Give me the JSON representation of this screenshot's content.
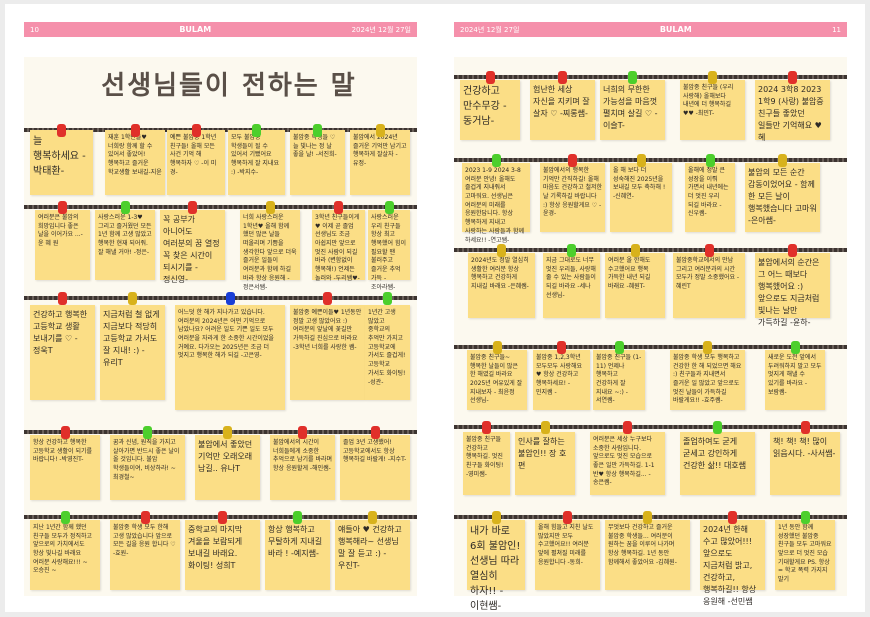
{
  "left_page": {
    "page_number": "10",
    "magazine": "BULAM",
    "date": "2024년 12월 27일",
    "title": "선생님들이 전하는 말"
  },
  "right_page": {
    "page_number": "11",
    "magazine": "BULAM",
    "date": "2024년 12월 27일"
  },
  "colors": {
    "header": "#f590ab",
    "note": "#fbde86",
    "pin_red": "#e0302a",
    "pin_green": "#4ccf2c",
    "pin_yellow": "#d8b21c",
    "pin_blue": "#1a3fd6"
  },
  "left_notes": [
    {
      "pin": "red",
      "text": "늘 행복하세요 -박태환-"
    },
    {
      "pin": "red",
      "text": "재훈 1학년들♥ 너희랑 함께 할 수 있어서 좋았어! 행복하고 즐거운 학교생활 보내길-지윤"
    },
    {
      "pin": "red",
      "text": "예쁜 불암중 1학년 친구들! 올해 모든 사건 기억 해 행복하자 ♡ -이 미 경-"
    },
    {
      "pin": "green",
      "text": "모두 불암중 학생들이 될 수 있어서 기뻤어요 행복하게 잘 지내요 :) -박지수-"
    },
    {
      "pin": "green",
      "text": "불암중 학생들 ♡ 늘 빛나는 정 날 좋을 날! -서진희-"
    },
    {
      "pin": "yellow",
      "text": "불암에서 2024년 즐거운 기억만 남기고 행복하게 잘살자 -유정-"
    },
    {
      "pin": "red",
      "text": "여러분은 불암의 희망입니다 좋은 날을 이어가요 ...-윤 혜 원"
    },
    {
      "pin": "green",
      "text": "사랑스러운 1-3♥ 그리고 즐거웠던 모든 1년 함께 고생 많았고 행복한 현재 되어줘. 잘 해낼 거야! -정은-"
    },
    {
      "pin": "red",
      "text": "꼭 공부가 아니어도 여러분의 꿈 열정 꼭 찾은 시간이 되시기를 -정신영-"
    },
    {
      "pin": "yellow",
      "text": "너희 사랑스러운 1학년♥ 올해 함께 했던 많은 날들 떠올리며 기쁨을 생각한다 앞으로 더욱 즐거운 일들이 여러분과 함께 하길 바라 항상 응원해 -정은서쌤-"
    },
    {
      "pin": "red",
      "text": "3학년 친구들이게♥ 이제 곧 졸업 선생님도 조금 아쉽지만 앞으로 멋진 사람이 되길 바라 (변함없이 행복해!) 언제든 놀러와 -두리쌤♥-"
    },
    {
      "pin": "green",
      "text": "사랑스러운 우리 친구들 항상 최고 행복했어 힘이 필요할 땐 불러주고 즐거운 추억 가득 -조아라쌤-"
    },
    {
      "pin": "red",
      "text": "건강하고 행복한 고등학교 생활 보내기를 ♡ -정욱T"
    },
    {
      "pin": "yellow",
      "text": "지금처럼 철 없게 지금보다 적당히 고등학교 가서도 잘 지내! :) -유리T"
    },
    {
      "pin": "blue",
      "text": "어느덧 한 해가 지나가고 있습니다. 여러분의 2024년은 어떤 기억으로 남았나요? 어려운 일도 기쁜 일도 모두 여러분을 자라게 한 소중한 시간이었을 거예요. 다가오는 2025년은 조금 더 멋지고 행복한 해가 되길 -고은영-"
    },
    {
      "pin": "red",
      "text": "불암중 예쁜이들♥ 1년동안 정말 고생 많았어요 :) 여러분의 앞날에 꽃길만 가득하길 진심으로 바라요 -3학년 너희를 사랑한 쌤-"
    },
    {
      "pin": "green",
      "text": "1년간 고생 많았고 중학교의 추억만 가지고 고등학교에 가서도 즐겁게! 고등학교 가서도 화이팅! -성관-"
    },
    {
      "pin": "red",
      "text": "항상 건강하고 행복한 고등학교 생활이 되기를 바랍니다! -박영진T-"
    },
    {
      "pin": "green",
      "text": "꿈과 신념, 원칙을 가지고 살아가면 반드시 좋은 날이 올 것입니다. 불암 학생들이여, 비상하라! ~최경철~"
    },
    {
      "pin": "yellow",
      "text": "불암에서 좋았던 기억만 오래오래 남길.. 유나T"
    },
    {
      "pin": "red",
      "text": "불암에서의 시간이 너희들에게 소중한 추억으로 남기를 바라며 항상 응원할게 -해인쌤-"
    },
    {
      "pin": "red",
      "text": "졸업 3년 고생했어! 고등학교에서도 항상 행복하길 바랄게! -지수T-"
    },
    {
      "pin": "green",
      "text": "지난 1년간 함께 했던 친구들 모두가 정직하고 앞으로의 가치에서도 항상 빛나길 바래요 여러분 사랑해요!!! ~오승진 ~"
    },
    {
      "pin": "red",
      "text": "불암중 학생 모두 한해 고생 많았습니다 앞으로 모든 길을 응원 합니다 ♡ -효원-"
    },
    {
      "pin": "red",
      "text": "중학교의 마지막 겨울을 보람되게 보내길 바래요. 화이팅! 성희T"
    },
    {
      "pin": "green",
      "text": "항상 행복하고 무탈하게 지내길 바라 ! -예지쌤-"
    },
    {
      "pin": "yellow",
      "text": "얘들아 ♥ 건강하고 행복해라~ 선생님 말 잘 듣고 :) -우진T-"
    }
  ],
  "right_notes": [
    {
      "pin": "red",
      "text": "건강하고 만수무강 -동거남-"
    },
    {
      "pin": "red",
      "text": "험난한 세상 자신을 지키며 잘 살자 ♡ -찌롱쌤-"
    },
    {
      "pin": "green",
      "text": "너희의 무한한 가능성을 마음껏 펼치며 살길 ♡ -이슬T-"
    },
    {
      "pin": "yellow",
      "text": "불암중 친구들 (우리 사랑해) 올해보다 내년에 더 행복하길 ♥♥ -최민T-"
    },
    {
      "pin": "red",
      "text": "2024 3학8 2023 1학9 (사랑) 불암중 친구들 좋았던 일들만 기억해요 ♥ 혜"
    },
    {
      "pin": "green",
      "text": "2023 1-9 2024 3-8 여러분 안녕! 올해도 즐겁게 지내줘서 고마워요. 선생님은 여러분의 미래를 응원한답니다. 항상 행복하게 지내고 사랑하는 사람들과 함께 하세요!! -연고쌤-"
    },
    {
      "pin": "red",
      "text": "불암에서의 행복한 기억만 간직하길! 올해 마음도 건강하고 철저한 날 기록하길 바랍니다 :) 항상 응원할게요 ♡ -윤경-"
    },
    {
      "pin": "yellow",
      "text": "올 해 보다 더 성숙해진 2025년을 보내길 모두 축하해 ! -신혜연-"
    },
    {
      "pin": "green",
      "text": "올해에 정말 큰 성장을 이뤄 가면서 내년에는 더 멋진 우리 되길 바라요 -신우쌤-"
    },
    {
      "pin": "yellow",
      "text": "불암의 모든 순간 감동이었어요 - 함께 한 모든 날이 행복했습니다 고마워 -은아쌤-"
    },
    {
      "pin": "yellow",
      "text": "2024년도 정말 열심히 생활한 여러분 항상 행복하고 건강하게 지내길 바래요 -은혜쌤-"
    },
    {
      "pin": "green",
      "text": "지금 그대로도 너무 멋진 우리들, 사랑해 줄 수 있는 사람들이 되길 바라요 -세나 선생님-"
    },
    {
      "pin": "yellow",
      "text": "여러분 올 한해도 수고했어요 행복 가득한 내년 되길 바래요 -혜원T-"
    },
    {
      "pin": "red",
      "text": "불암중학교에서의 만남 그리고 여러분과의 시간 모두가 정말 소중했어요 -혜린T"
    },
    {
      "pin": "red",
      "text": "불암에서의 순간은 그 어느 때보다 행복했어요 :) 앞으로도 지금처럼 빛나는 날만 가득하길 -윤하-"
    },
    {
      "pin": "yellow",
      "text": "불암중 친구들~ 행복한 날들이 많은 한 해였길 바라요 2025년 여유있게 잘 지내보자 - 최윤정 선생님-"
    },
    {
      "pin": "red",
      "text": "불암중 1,2,3학년 모두모두 사랑해요 ♥ 항상 건강하고 행복하세요! - 민지쌤 -"
    },
    {
      "pin": "green",
      "text": "불암중 친구들 (1-11) 언제나 행복하고 건강하게 잘 지내요 ~:) -서연쌤-"
    },
    {
      "pin": "yellow",
      "text": "불암중 학생 모두 행복하고 건강한 한 해 되었으면 해요 :) 친구들과 지내면서 즐거운 일 많았고 앞으로도 멋진 날들이 가득하길 바랄게요!! -효주쌤-"
    },
    {
      "pin": "green",
      "text": "새로운 도전 앞에서 두려워하지 말고 모두 멋지게 해낼 수 있기를 바라요 -보람쌤-"
    },
    {
      "pin": "red",
      "text": "불암중 친구들 건강하고 행복하길. 멋진 친구들 화이팅! -영미쌤-"
    },
    {
      "pin": "yellow",
      "text": "인사를 잘하는 불암인!! 장 호 편"
    },
    {
      "pin": "red",
      "text": "여러분은 세상 누구보다 소중한 사람입니다. 앞으로도 멋진 모습으로 좋은 일만 가득하길. 1-1 반♥ 항상 행복하길... -송은쌤-"
    },
    {
      "pin": "green",
      "text": "졸업하여도 굳게 굳세고 강인하게 건강한 삶!! 대호쌤"
    },
    {
      "pin": "red",
      "text": "책! 책! 책! 많이 읽읍시다. -사서쌤-"
    },
    {
      "pin": "yellow",
      "text": "내가 바로 6회 불암인! 선생님 따라 열심히 하자!! -이현쌤-"
    },
    {
      "pin": "red",
      "text": "올해 힘들고 지친 날도 많았지만 모두 수고했어요!! 여러분 앞에 펼쳐질 미래를 응원합니다 -동희-"
    },
    {
      "pin": "yellow",
      "text": "무엇보다 건강하고 즐거운 불암중 학생들... 여러분이 원하는 꿈을 이루어 나가며 항상 행복하길. 1년 동안 함께해서 좋았어요 -김혜원-"
    },
    {
      "pin": "red",
      "text": "2024년 한해 수고 많았어!!! 앞으로도 지금처럼 밝고, 건강하고, 행복하길!! 항상 응원해 -선민쌤"
    },
    {
      "pin": "green",
      "text": "1년 동안 함께 성장했던 불암중 친구들 모두 고마워요 앞으로 더 멋진 모습 기대할게요 PS. 항상 = 학교 폭력 가지지 말기"
    }
  ]
}
